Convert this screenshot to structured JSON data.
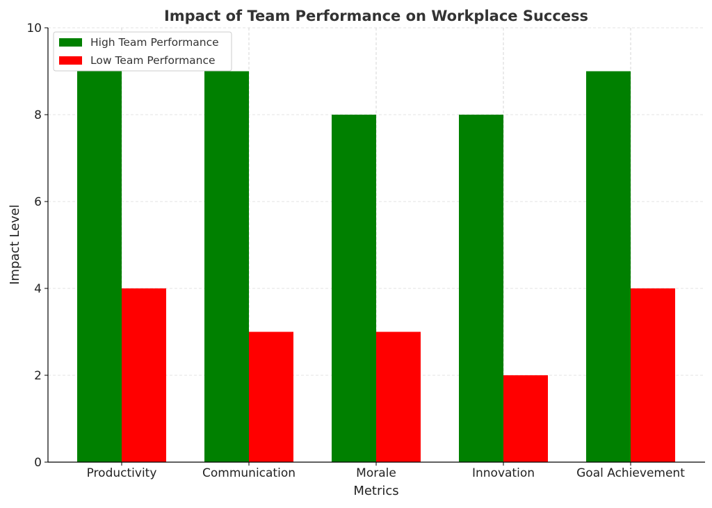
{
  "chart_data": {
    "type": "bar",
    "title": "Impact of Team Performance on Workplace Success",
    "xlabel": "Metrics",
    "ylabel": "Impact Level",
    "categories": [
      "Productivity",
      "Communication",
      "Morale",
      "Innovation",
      "Goal Achievement"
    ],
    "series": [
      {
        "name": "High Team Performance",
        "values": [
          9,
          9,
          8,
          8,
          9
        ],
        "color": "#008000"
      },
      {
        "name": "Low Team Performance",
        "values": [
          4,
          3,
          3,
          2,
          4
        ],
        "color": "#ff0000"
      }
    ],
    "ylim": [
      0,
      10
    ],
    "yticks": [
      0,
      2,
      4,
      6,
      8,
      10
    ],
    "grid": true,
    "legend_position": "top-left"
  }
}
